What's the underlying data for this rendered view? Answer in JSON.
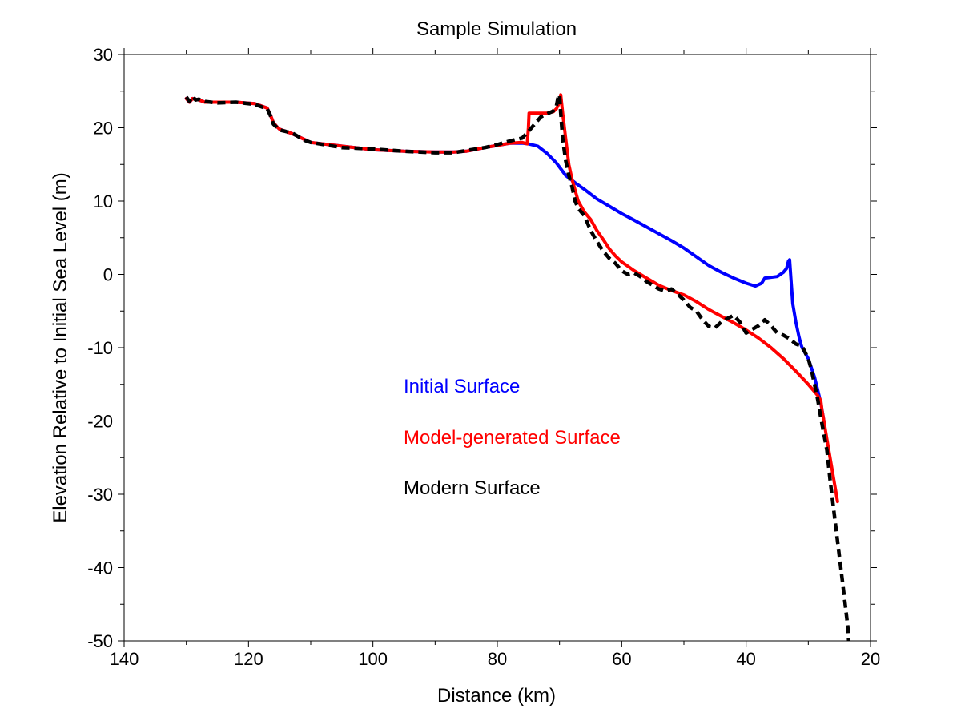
{
  "chart_data": {
    "type": "line",
    "title": "Sample Simulation",
    "xlabel": "Distance (km)",
    "ylabel": "Elevation Relative to Initial Sea Level (m)",
    "xlim": [
      140,
      20
    ],
    "ylim": [
      -50,
      30
    ],
    "x_reversed": true,
    "x_ticks": [
      140,
      120,
      100,
      80,
      60,
      40,
      20
    ],
    "x_minor_ticks": [
      130,
      110,
      90,
      70,
      50,
      30
    ],
    "y_ticks": [
      30,
      20,
      10,
      0,
      -10,
      -20,
      -30,
      -40,
      -50
    ],
    "y_minor_ticks": [
      25,
      15,
      5,
      -5,
      -15,
      -25,
      -35,
      -45
    ],
    "x_tick_labels": [
      "140",
      "120",
      "100",
      "80",
      "60",
      "40",
      "20"
    ],
    "y_tick_labels": [
      "30",
      "20",
      "10",
      "0",
      "-10",
      "-20",
      "-30",
      "-40",
      "-50"
    ],
    "grid": false,
    "legend_placement": "inside-center",
    "series": [
      {
        "name": "Initial Surface",
        "color": "#0000ff",
        "style": "solid",
        "x": [
          130,
          129.5,
          129,
          128,
          127,
          125,
          122,
          119,
          117,
          116.5,
          116,
          115.5,
          115,
          113,
          111,
          110,
          105,
          100,
          95,
          90,
          87,
          85,
          82,
          80,
          78,
          76,
          75,
          73.5,
          72,
          70.5,
          69,
          67.5,
          66,
          64,
          62,
          60,
          58,
          55,
          52,
          50,
          48,
          46,
          44,
          42,
          40,
          38.5,
          37.5,
          37,
          36,
          35,
          34,
          33.5,
          33.2,
          33,
          32.8,
          32.5,
          32,
          31.5,
          31.2,
          31,
          30,
          29,
          28,
          27.5
        ],
        "y": [
          24,
          23.5,
          24,
          23.8,
          23.5,
          23.5,
          23.5,
          23.3,
          22.7,
          21.8,
          20.7,
          20.2,
          19.8,
          19.2,
          18.4,
          18,
          17.5,
          17,
          16.8,
          16.7,
          16.7,
          16.8,
          17.3,
          17.6,
          17.9,
          17.9,
          17.8,
          17.5,
          16.5,
          15.2,
          13.5,
          12.5,
          11.6,
          10.3,
          9.3,
          8.3,
          7.4,
          6,
          4.6,
          3.6,
          2.4,
          1.2,
          0.3,
          -0.5,
          -1.2,
          -1.6,
          -1.2,
          -0.5,
          -0.4,
          -0.3,
          0.3,
          0.8,
          1.8,
          2,
          -0.5,
          -4,
          -6.5,
          -8.5,
          -9.5,
          -10,
          -11.5,
          -14,
          -17.5,
          -20
        ]
      },
      {
        "name": "Model-generated Surface",
        "color": "#ff0000",
        "style": "solid",
        "x": [
          130,
          129.5,
          129,
          128,
          127,
          125,
          122,
          119,
          117,
          116.5,
          116,
          115.5,
          115,
          113,
          111,
          110,
          105,
          100,
          95,
          90,
          87,
          85,
          82,
          80,
          78,
          76,
          75.2,
          75,
          74.9,
          74,
          73,
          72,
          71,
          70.5,
          70,
          69.8,
          69.5,
          69,
          68.5,
          68,
          67.5,
          67,
          66,
          65,
          64,
          63,
          62,
          61,
          60,
          58,
          56,
          54,
          52,
          50,
          48,
          46,
          44,
          42,
          40,
          38,
          36,
          34,
          32,
          30,
          28.5,
          28,
          27.8,
          27.5,
          27,
          26.5,
          26,
          25.5,
          25.3
        ],
        "y": [
          24,
          23.5,
          24,
          23.8,
          23.5,
          23.5,
          23.5,
          23.3,
          22.7,
          21.8,
          20.7,
          20.2,
          19.8,
          19.2,
          18.4,
          18,
          17.5,
          17,
          16.8,
          16.7,
          16.7,
          16.8,
          17.3,
          17.6,
          17.9,
          18,
          17.8,
          20,
          22,
          22,
          22,
          22,
          22.2,
          22.6,
          23.5,
          24.5,
          22,
          18.5,
          15,
          13,
          11.5,
          10,
          8.5,
          7.5,
          6,
          4.8,
          3.5,
          2.5,
          1.7,
          0.5,
          -0.5,
          -1.5,
          -2.2,
          -2.8,
          -3.7,
          -4.8,
          -5.7,
          -6.6,
          -7.6,
          -8.7,
          -10,
          -11.5,
          -13.2,
          -15,
          -16.5,
          -17.2,
          -18.5,
          -20,
          -22.5,
          -25,
          -27.5,
          -30,
          -31
        ]
      },
      {
        "name": "Modern Surface",
        "color": "#000000",
        "style": "dashed",
        "x": [
          130,
          129.5,
          129,
          128.5,
          128,
          127,
          125,
          122,
          119,
          117,
          116.5,
          116,
          115.5,
          115,
          113,
          111,
          110,
          105,
          100,
          95,
          90,
          87,
          85,
          82,
          80,
          78,
          76,
          75,
          74,
          73,
          72,
          71,
          70.5,
          70.2,
          70,
          69.8,
          69.5,
          69,
          68.5,
          68,
          67.5,
          67,
          66,
          65,
          64,
          63,
          62,
          61,
          60,
          59,
          58,
          57,
          56,
          55,
          54,
          53,
          52,
          51,
          50,
          49,
          48,
          47,
          46,
          45,
          44,
          43,
          42,
          41,
          40,
          39,
          38,
          37,
          36,
          35,
          34,
          33,
          32,
          31,
          30,
          29.5,
          29,
          28.5,
          28,
          27,
          26.5,
          26,
          25.5,
          25,
          24.5,
          24,
          23.8,
          23.6,
          23.5
        ],
        "y": [
          24.2,
          23.6,
          24.3,
          23.8,
          23.9,
          23.6,
          23.4,
          23.5,
          23.2,
          22.6,
          21.7,
          20.5,
          20.1,
          19.7,
          19.3,
          18.3,
          18,
          17.3,
          17.1,
          16.8,
          16.6,
          16.6,
          16.9,
          17.3,
          17.7,
          18.2,
          18.6,
          19.5,
          20.5,
          21.5,
          21.9,
          22.3,
          23,
          24.3,
          24.5,
          22,
          18.5,
          15.5,
          13.5,
          12,
          10,
          9,
          8,
          6,
          4.5,
          3.2,
          2.2,
          1.5,
          0.5,
          0,
          0.2,
          -0.3,
          -1,
          -1.5,
          -2,
          -2.3,
          -2,
          -2.7,
          -3.5,
          -4.5,
          -5,
          -6.2,
          -7.1,
          -7.3,
          -6.5,
          -6,
          -5.6,
          -6.5,
          -8,
          -7.5,
          -7,
          -6.2,
          -7,
          -8,
          -8.3,
          -8.8,
          -9.5,
          -9.8,
          -11.5,
          -13,
          -15,
          -17,
          -19.5,
          -24,
          -28,
          -31.5,
          -35,
          -38.5,
          -42,
          -45.5,
          -47,
          -48.5,
          -50
        ]
      }
    ],
    "legend": [
      {
        "label": "Initial Surface",
        "color": "#0000ff"
      },
      {
        "label": "Model-generated Surface",
        "color": "#ff0000"
      },
      {
        "label": "Modern Surface",
        "color": "#000000"
      }
    ]
  }
}
